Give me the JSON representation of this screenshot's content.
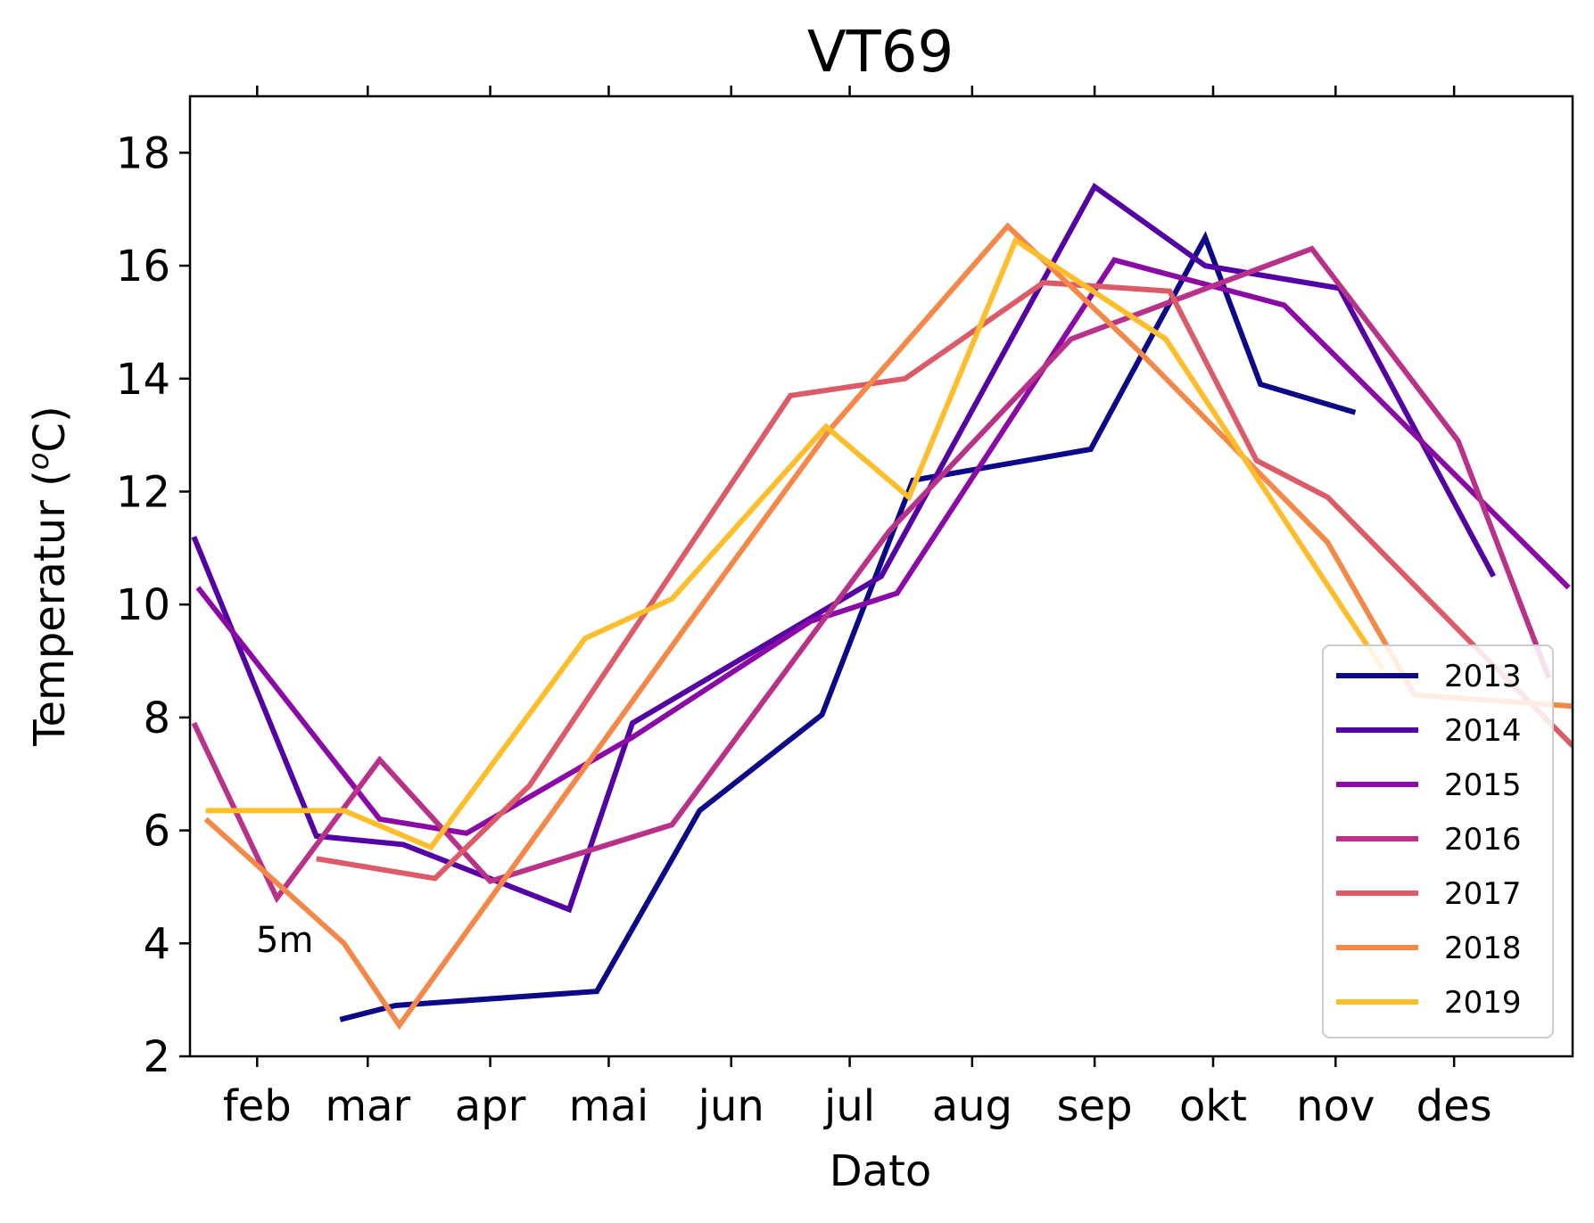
{
  "chart_data": {
    "type": "line",
    "title": "VT69",
    "xlabel": "Dato",
    "ylabel_main": "Temperatur (",
    "ylabel_sup": "o",
    "ylabel_tail": "C)",
    "annotation": "5m",
    "ylim": [
      2,
      19
    ],
    "yticks": [
      2,
      4,
      6,
      8,
      10,
      12,
      14,
      16,
      18
    ],
    "xlim": [
      15,
      365
    ],
    "xticks": [
      {
        "day": 32,
        "label": "feb"
      },
      {
        "day": 60,
        "label": "mar"
      },
      {
        "day": 91,
        "label": "apr"
      },
      {
        "day": 121,
        "label": "mai"
      },
      {
        "day": 152,
        "label": "jun"
      },
      {
        "day": 182,
        "label": "jul"
      },
      {
        "day": 213,
        "label": "aug"
      },
      {
        "day": 244,
        "label": "sep"
      },
      {
        "day": 274,
        "label": "okt"
      },
      {
        "day": 305,
        "label": "nov"
      },
      {
        "day": 335,
        "label": "des"
      }
    ],
    "grid": false,
    "legend_position": "lower-right",
    "series": [
      {
        "name": "2013",
        "color": "#0d0887",
        "x": [
          53,
          67,
          118,
          144,
          175,
          198,
          243,
          272,
          286,
          310
        ],
        "y": [
          2.65,
          2.9,
          3.15,
          6.35,
          8.05,
          12.2,
          12.75,
          16.5,
          13.9,
          13.4
        ]
      },
      {
        "name": "2014",
        "color": "#5302a3",
        "x": [
          16,
          47,
          69,
          111,
          127,
          190,
          244,
          272,
          306,
          345
        ],
        "y": [
          11.2,
          5.9,
          5.75,
          4.6,
          7.9,
          10.5,
          17.4,
          16.0,
          15.6,
          10.5
        ]
      },
      {
        "name": "2015",
        "color": "#8b0aa5",
        "x": [
          17,
          63,
          85,
          127,
          172,
          194,
          249,
          292,
          364
        ],
        "y": [
          10.3,
          6.2,
          5.95,
          7.65,
          9.7,
          10.2,
          16.1,
          15.3,
          10.3
        ]
      },
      {
        "name": "2016",
        "color": "#b83289",
        "x": [
          16,
          37,
          63,
          91,
          137,
          192,
          238,
          299,
          336,
          359
        ],
        "y": [
          7.9,
          4.8,
          7.25,
          5.1,
          6.1,
          11.3,
          14.7,
          16.3,
          12.9,
          8.7
        ]
      },
      {
        "name": "2017",
        "color": "#db5c68",
        "x": [
          47,
          77,
          101,
          167,
          196,
          231,
          263,
          285,
          303,
          365
        ],
        "y": [
          5.5,
          5.15,
          6.8,
          13.7,
          14.0,
          15.7,
          15.55,
          12.55,
          11.9,
          7.5
        ]
      },
      {
        "name": "2018",
        "color": "#f48849",
        "x": [
          19,
          54,
          68,
          141,
          177,
          222,
          255,
          303,
          325,
          365
        ],
        "y": [
          6.2,
          4.0,
          2.55,
          9.65,
          13.1,
          16.7,
          14.5,
          11.1,
          8.4,
          8.2
        ]
      },
      {
        "name": "2019",
        "color": "#febd2a",
        "x": [
          19,
          54,
          76,
          115,
          137,
          176,
          197,
          224,
          262,
          317
        ],
        "y": [
          6.35,
          6.35,
          5.7,
          9.4,
          10.1,
          13.15,
          11.9,
          16.45,
          14.7,
          8.85
        ]
      }
    ]
  }
}
